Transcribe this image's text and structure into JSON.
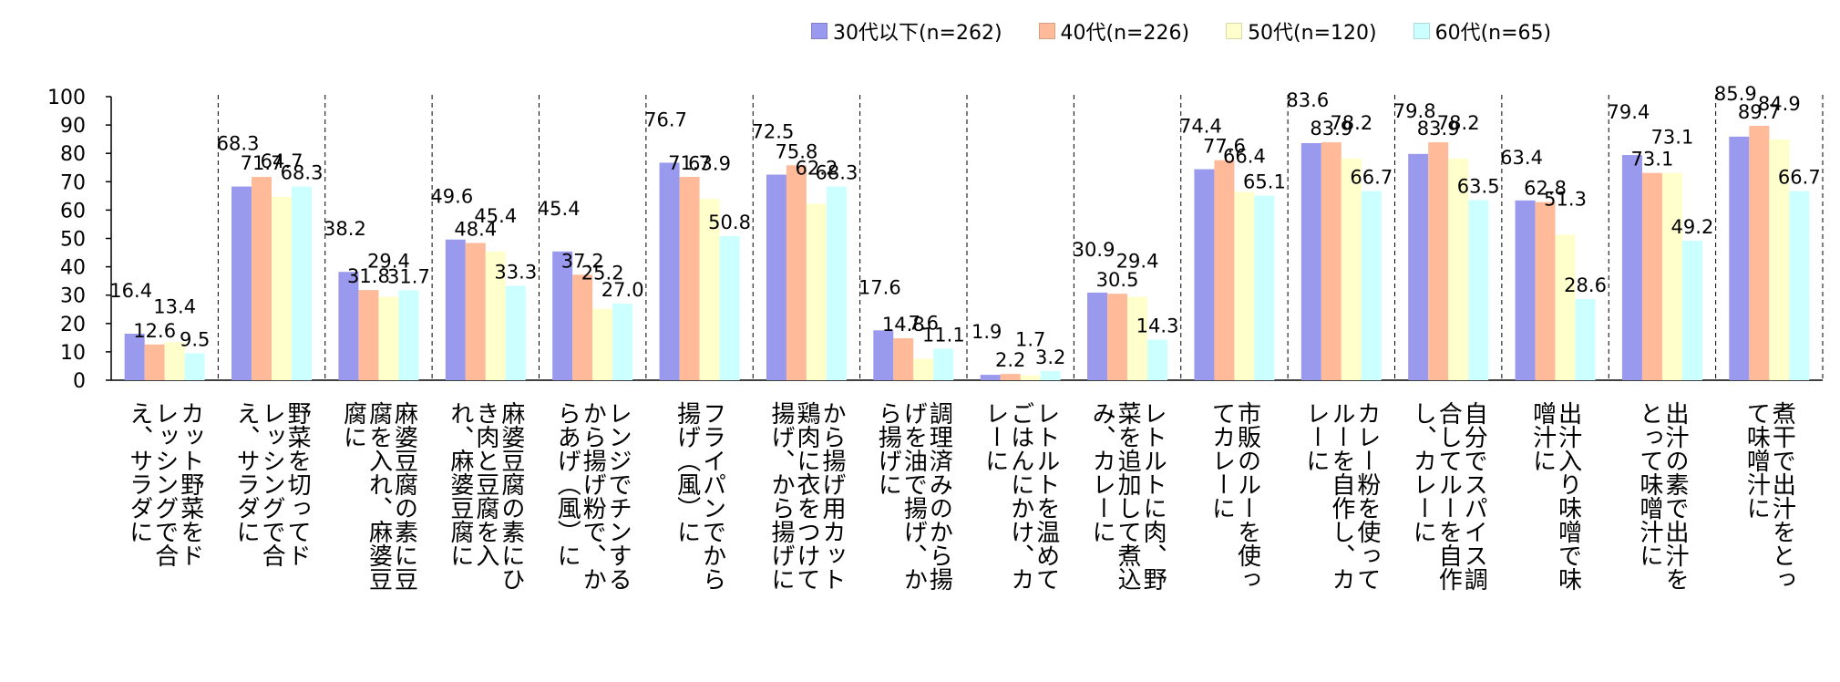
{
  "chart_data": {
    "type": "bar",
    "ylim": [
      0,
      100
    ],
    "yticks": [
      "0",
      "10",
      "20",
      "30",
      "40",
      "50",
      "60",
      "70",
      "80",
      "90",
      "100"
    ],
    "grid": false,
    "legend_position": "top-right",
    "categories": [
      "カット野菜をドレッシングで合え、サラダに",
      "野菜を切ってドレッシングで合え、サラダに",
      "麻婆豆腐の素に豆腐を入れ、麻婆豆腐に",
      "麻婆豆腐の素にひき肉と豆腐を入れ、麻婆豆腐に",
      "レンジでチンするから揚げ粉で、からあげ（風）に",
      "フライパンでから揚げ（風）に",
      "から揚げ用カット鶏肉に衣をつけて揚げ、から揚げに",
      "調理済みのから揚げを油で揚げ、から揚げに",
      "レトルトを温めてごはんにかけ、カレーに",
      "レトルトに肉、野菜を追加して煮込み、カレーに",
      "市販のルーを使ってカレーに",
      "カレー粉を使ってルーを自作し、カレーに",
      "自分でスパイス調合してルーを自作し、カレーに",
      "出汁入り味噌で味噌汁に",
      "出汁の素で出汁をとって味噌汁に",
      "煮干で出汁をとって味噌汁に"
    ],
    "category_lines": [
      [
        "カット野菜をド",
        "レッシングで合",
        "え、サラダに"
      ],
      [
        "野菜を切ってド",
        "レッシングで合",
        "え、サラダに"
      ],
      [
        "麻婆豆腐の素に豆",
        "腐を入れ、麻婆豆",
        "腐に"
      ],
      [
        "麻婆豆腐の素にひ",
        "き肉と豆腐を入",
        "れ、麻婆豆腐に"
      ],
      [
        "レンジでチンする",
        "から揚げ粉で、か",
        "らあげ（風）に"
      ],
      [
        "フライパンでから",
        "揚げ（風）に"
      ],
      [
        "から揚げ用カット",
        "鶏肉に衣をつけて",
        "揚げ、から揚げに"
      ],
      [
        "調理済みのから揚",
        "げを油で揚げ、か",
        "ら揚げに"
      ],
      [
        "レトルトを温めて",
        "ごはんにかけ、カ",
        "レーに"
      ],
      [
        "レトルトに肉、野",
        "菜を追加して煮込",
        "み、カレーに"
      ],
      [
        "市販のルーを使っ",
        "てカレーに"
      ],
      [
        "カレー粉を使って",
        "ルーを自作し、カ",
        "レーに"
      ],
      [
        "自分でスパイス調",
        "合してルーを自作",
        "し、カレーに"
      ],
      [
        "出汁入り味噌で味",
        "噌汁に"
      ],
      [
        "出汁の素で出汁を",
        "とって味噌汁に"
      ],
      [
        "煮干で出汁をとっ",
        "て味噌汁に"
      ]
    ],
    "series": [
      {
        "name": "30代以下(n=262)",
        "color": "#9999ee",
        "values": [
          16.4,
          68.3,
          38.2,
          49.6,
          45.4,
          76.7,
          72.5,
          17.6,
          1.9,
          30.9,
          74.4,
          83.6,
          79.8,
          63.4,
          79.4,
          85.9
        ]
      },
      {
        "name": "40代(n=226)",
        "color": "#ffbb99",
        "values": [
          12.6,
          71.7,
          31.8,
          48.4,
          37.2,
          71.7,
          75.8,
          14.8,
          2.2,
          30.5,
          77.6,
          83.9,
          83.9,
          62.8,
          73.1,
          89.7
        ]
      },
      {
        "name": "50代(n=120)",
        "color": "#ffffcc",
        "values": [
          13.4,
          64.7,
          29.4,
          45.4,
          25.2,
          63.9,
          62.2,
          7.6,
          1.7,
          29.4,
          66.4,
          78.2,
          78.2,
          51.3,
          73.1,
          84.9
        ]
      },
      {
        "name": "60代(n=65)",
        "color": "#ccffff",
        "values": [
          9.5,
          68.3,
          31.7,
          33.3,
          27.0,
          50.8,
          68.3,
          11.1,
          3.2,
          14.3,
          65.1,
          66.7,
          63.5,
          28.6,
          49.2,
          66.7
        ]
      }
    ]
  }
}
